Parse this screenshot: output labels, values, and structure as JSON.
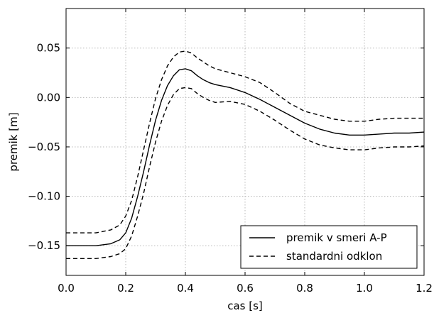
{
  "chart_data": {
    "type": "line",
    "xlabel": "cas [s]",
    "ylabel": "premik [m]",
    "xlim": [
      0.0,
      1.2
    ],
    "ylim": [
      -0.18,
      0.09
    ],
    "grid": true,
    "legend_position": "bottom-right",
    "x_ticks": [
      "0.0",
      "0.2",
      "0.4",
      "0.6",
      "0.8",
      "1.0",
      "1.2"
    ],
    "y_ticks": [
      "−0.15",
      "−0.10",
      "−0.05",
      "0.00",
      "0.05"
    ],
    "x": [
      0.0,
      0.05,
      0.1,
      0.15,
      0.18,
      0.2,
      0.22,
      0.24,
      0.26,
      0.28,
      0.3,
      0.32,
      0.34,
      0.36,
      0.38,
      0.4,
      0.42,
      0.44,
      0.46,
      0.48,
      0.5,
      0.55,
      0.6,
      0.65,
      0.7,
      0.75,
      0.8,
      0.85,
      0.9,
      0.95,
      1.0,
      1.05,
      1.1,
      1.15,
      1.2
    ],
    "series": [
      {
        "name": "premik v smeri A-P",
        "style": "solid",
        "values": [
          -0.15,
          -0.15,
          -0.15,
          -0.148,
          -0.144,
          -0.137,
          -0.122,
          -0.1,
          -0.075,
          -0.048,
          -0.023,
          -0.003,
          0.012,
          0.022,
          0.028,
          0.029,
          0.027,
          0.022,
          0.018,
          0.015,
          0.013,
          0.01,
          0.005,
          -0.002,
          -0.01,
          -0.018,
          -0.026,
          -0.032,
          -0.036,
          -0.038,
          -0.038,
          -0.037,
          -0.036,
          -0.036,
          -0.035
        ]
      },
      {
        "name": "standardni odklon",
        "style": "dashed",
        "values": [
          -0.137,
          -0.137,
          -0.137,
          -0.134,
          -0.129,
          -0.12,
          -0.104,
          -0.08,
          -0.053,
          -0.026,
          -0.001,
          0.018,
          0.032,
          0.041,
          0.046,
          0.047,
          0.045,
          0.04,
          0.036,
          0.032,
          0.029,
          0.025,
          0.021,
          0.015,
          0.005,
          -0.006,
          -0.014,
          -0.018,
          -0.022,
          -0.024,
          -0.024,
          -0.022,
          -0.021,
          -0.021,
          -0.021
        ]
      },
      {
        "name": "",
        "style": "dashed",
        "values": [
          -0.163,
          -0.163,
          -0.163,
          -0.161,
          -0.158,
          -0.153,
          -0.14,
          -0.12,
          -0.097,
          -0.07,
          -0.045,
          -0.024,
          -0.008,
          0.003,
          0.009,
          0.01,
          0.009,
          0.004,
          0.0,
          -0.003,
          -0.005,
          -0.004,
          -0.007,
          -0.014,
          -0.023,
          -0.033,
          -0.042,
          -0.048,
          -0.051,
          -0.053,
          -0.053,
          -0.051,
          -0.05,
          -0.05,
          -0.049
        ]
      }
    ]
  }
}
